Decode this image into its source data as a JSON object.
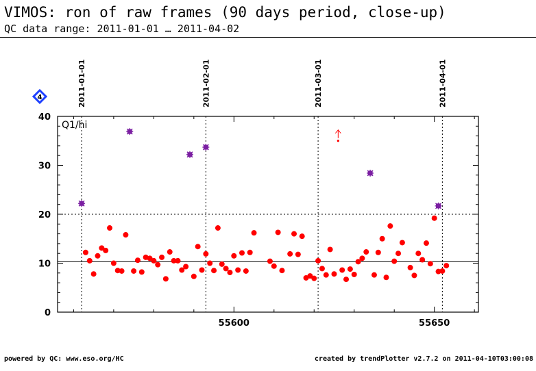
{
  "header": {
    "title": "VIMOS: ron of raw frames (90 days period, close-up)",
    "subtitle": "QC data range: 2011-01-01 … 2011-04-02"
  },
  "footer": {
    "left": "powered by QC: www.eso.org/HC",
    "right": "created by trendPlotter v2.7.2 on 2011-04-10T03:00:08"
  },
  "colors": {
    "points": "#ff0000",
    "outliers": "#7b1fa2",
    "badge": "#1e40ff"
  },
  "chart_data": {
    "type": "scatter",
    "panel_label": "Q1/hi",
    "badge_label": "4",
    "xlim": [
      55556,
      55661
    ],
    "ylim": [
      0,
      40
    ],
    "x_ticks": [
      55600,
      55650
    ],
    "y_ticks": [
      0,
      10,
      20,
      30,
      40
    ],
    "mean_line": 10.3,
    "threshold_line": 20,
    "date_markers": [
      {
        "label": "2011-01-01",
        "x": 55562
      },
      {
        "label": "2011-02-01",
        "x": 55593
      },
      {
        "label": "2011-03-01",
        "x": 55621
      },
      {
        "label": "2011-04-01",
        "x": 55652
      }
    ],
    "points": [
      [
        55563.0,
        12.2
      ],
      [
        55564.0,
        10.5
      ],
      [
        55565.0,
        7.8
      ],
      [
        55566.0,
        11.5
      ],
      [
        55567.0,
        13.1
      ],
      [
        55568.0,
        12.6
      ],
      [
        55569.0,
        17.2
      ],
      [
        55570.0,
        10.0
      ],
      [
        55571.0,
        8.5
      ],
      [
        55572.0,
        8.4
      ],
      [
        55573.0,
        15.8
      ],
      [
        55575.0,
        8.4
      ],
      [
        55576.0,
        10.6
      ],
      [
        55577.0,
        8.2
      ],
      [
        55578.0,
        11.2
      ],
      [
        55579.0,
        11.0
      ],
      [
        55580.0,
        10.5
      ],
      [
        55581.0,
        9.7
      ],
      [
        55582.0,
        11.2
      ],
      [
        55583.0,
        6.8
      ],
      [
        55584.0,
        12.3
      ],
      [
        55585.0,
        10.5
      ],
      [
        55586.0,
        10.5
      ],
      [
        55587.0,
        8.6
      ],
      [
        55588.0,
        9.3
      ],
      [
        55590.0,
        7.3
      ],
      [
        55591.0,
        13.4
      ],
      [
        55592.0,
        8.6
      ],
      [
        55593.0,
        11.9
      ],
      [
        55594.0,
        10.0
      ],
      [
        55595.0,
        8.5
      ],
      [
        55596.0,
        17.2
      ],
      [
        55597.0,
        9.8
      ],
      [
        55598.0,
        8.9
      ],
      [
        55599.0,
        8.1
      ],
      [
        55600.0,
        11.5
      ],
      [
        55601.0,
        8.6
      ],
      [
        55602.0,
        12.1
      ],
      [
        55603.0,
        8.4
      ],
      [
        55604.0,
        12.2
      ],
      [
        55605.0,
        16.2
      ],
      [
        55609.0,
        10.4
      ],
      [
        55610.0,
        9.4
      ],
      [
        55611.0,
        16.3
      ],
      [
        55612.0,
        8.5
      ],
      [
        55614.0,
        11.9
      ],
      [
        55615.0,
        16.0
      ],
      [
        55616.0,
        11.8
      ],
      [
        55617.0,
        15.5
      ],
      [
        55618.0,
        7.0
      ],
      [
        55619.0,
        7.4
      ],
      [
        55620.0,
        6.9
      ],
      [
        55621.0,
        10.5
      ],
      [
        55622.0,
        8.9
      ],
      [
        55623.0,
        7.6
      ],
      [
        55624.0,
        12.8
      ],
      [
        55625.0,
        7.8
      ],
      [
        55627.0,
        8.6
      ],
      [
        55628.0,
        6.7
      ],
      [
        55629.0,
        8.8
      ],
      [
        55630.0,
        7.7
      ],
      [
        55631.0,
        10.3
      ],
      [
        55632.0,
        11.0
      ],
      [
        55633.0,
        12.3
      ],
      [
        55635.0,
        7.6
      ],
      [
        55636.0,
        12.2
      ],
      [
        55637.0,
        15.0
      ],
      [
        55638.0,
        7.1
      ],
      [
        55639.0,
        17.6
      ],
      [
        55640.0,
        10.4
      ],
      [
        55641.0,
        12.0
      ],
      [
        55642.0,
        14.2
      ],
      [
        55644.0,
        9.1
      ],
      [
        55645.0,
        7.5
      ],
      [
        55646.0,
        12.0
      ],
      [
        55647.0,
        10.7
      ],
      [
        55648.0,
        14.1
      ],
      [
        55649.0,
        9.9
      ],
      [
        55650.0,
        19.2
      ],
      [
        55651.0,
        8.3
      ],
      [
        55652.0,
        8.4
      ],
      [
        55653.0,
        9.5
      ]
    ],
    "outlier_points": [
      [
        55562.0,
        22.2
      ],
      [
        55574.0,
        36.9
      ],
      [
        55589.0,
        32.2
      ],
      [
        55593.0,
        33.7
      ],
      [
        55634.0,
        28.4
      ],
      [
        55651.0,
        21.7
      ]
    ],
    "off_scale_points": [
      [
        55626.0,
        35.0
      ]
    ]
  }
}
